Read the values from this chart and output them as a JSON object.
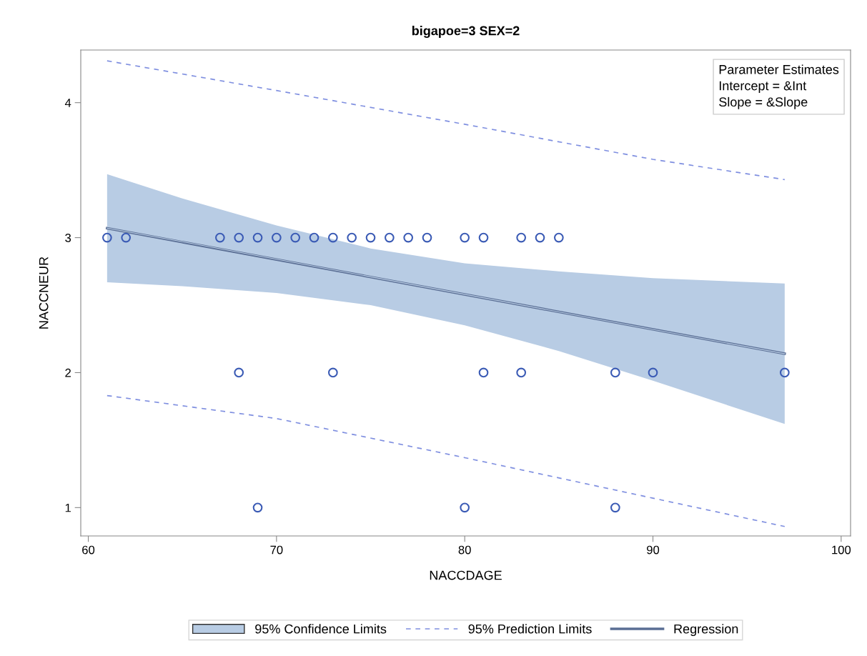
{
  "chart_data": {
    "type": "scatter",
    "title": "bigapoe=3 SEX=2",
    "xlabel": "NACCDAGE",
    "ylabel": "NACCNEUR",
    "xlim": [
      59.6,
      100.5
    ],
    "xticks": [
      60,
      70,
      80,
      90,
      100
    ],
    "ylim": [
      0.79,
      4.39
    ],
    "yticks": [
      1,
      2,
      3,
      4
    ],
    "grid": false,
    "legend": "bottom",
    "annotations": [
      "Parameter Estimates",
      "Intercept = &Int",
      "Slope = &Slope"
    ],
    "series": [
      {
        "type": "line",
        "name": "95% Confidence Limits",
        "color": "#b8cce4",
        "x": [
          61,
          65,
          70,
          75,
          80,
          85,
          90,
          97
        ],
        "values": [
          3.07,
          2.97,
          2.84,
          2.71,
          2.58,
          2.45,
          2.32,
          2.14
        ],
        "lower": [
          2.67,
          2.64,
          2.59,
          2.5,
          2.35,
          2.16,
          1.94,
          1.62
        ],
        "upper": [
          3.47,
          3.29,
          3.09,
          2.92,
          2.81,
          2.75,
          2.7,
          2.66
        ]
      },
      {
        "type": "line",
        "name": "95% Prediction Limits",
        "color": "#7f8fe0",
        "line_style": "dashed",
        "x": [
          61,
          70,
          80,
          90,
          97
        ],
        "values": [
          4.31,
          4.09,
          3.84,
          3.58,
          3.43
        ]
      },
      {
        "type": "line",
        "color": "#7f8fe0",
        "line_style": "dashed",
        "x": [
          61,
          70,
          80,
          90,
          97
        ],
        "values": [
          1.83,
          1.66,
          1.37,
          1.07,
          0.86
        ]
      },
      {
        "type": "scatter",
        "marker": "circle",
        "color": "#3b5bb5",
        "x": [
          61,
          62,
          67,
          68,
          69,
          70,
          71,
          72,
          73,
          74,
          75,
          76,
          77,
          78,
          80,
          81,
          83,
          84,
          85,
          68,
          73,
          81,
          83,
          88,
          90,
          97,
          69,
          80,
          88
        ],
        "values": [
          3,
          3,
          3,
          3,
          3,
          3,
          3,
          3,
          3,
          3,
          3,
          3,
          3,
          3,
          3,
          3,
          3,
          3,
          3,
          2,
          2,
          2,
          2,
          2,
          2,
          2,
          1,
          1,
          1
        ]
      },
      {
        "type": "line",
        "name": "Regression",
        "color": "#5a6e94",
        "line_style": "solid",
        "x": [
          61,
          97
        ],
        "values": [
          3.07,
          2.14
        ]
      }
    ]
  }
}
